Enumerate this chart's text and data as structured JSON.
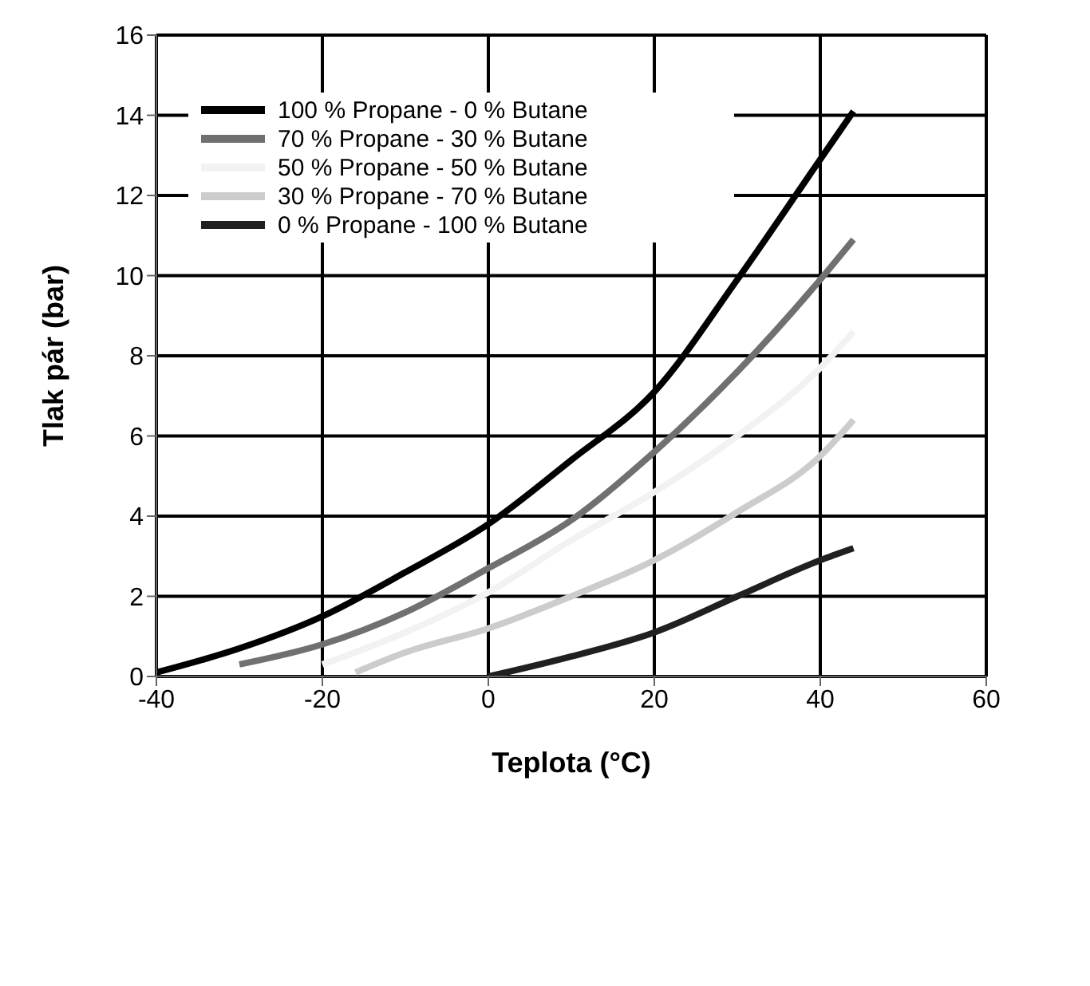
{
  "chart_data": {
    "type": "line",
    "xlabel": "Teplota (°C)",
    "ylabel": "Tlak pár (bar)",
    "xlim": [
      -40,
      60
    ],
    "xticks": [
      -40,
      -20,
      0,
      20,
      40,
      60
    ],
    "ylim": [
      0,
      16
    ],
    "yticks": [
      0,
      2,
      4,
      6,
      8,
      10,
      12,
      14,
      16
    ],
    "grid": true,
    "legend": "top left",
    "marker": "none",
    "line_style": "solid",
    "series": [
      {
        "name": "100 % Propane - 0 % Butane",
        "color": "#000000",
        "x": [
          -40,
          -30,
          -20,
          -10,
          0,
          10,
          20,
          30,
          40,
          44
        ],
        "values": [
          0.1,
          0.7,
          1.5,
          2.6,
          3.8,
          5.4,
          7.1,
          9.9,
          12.9,
          14.1
        ]
      },
      {
        "name": "70 % Propane - 30 % Butane",
        "color": "#707070",
        "x": [
          -30,
          -20,
          -10,
          0,
          10,
          20,
          30,
          40,
          44
        ],
        "values": [
          0.3,
          0.8,
          1.6,
          2.7,
          3.9,
          5.6,
          7.6,
          9.9,
          10.9
        ]
      },
      {
        "name": "50 % Propane - 50 % Butane",
        "color": "#f2f2f2",
        "x": [
          -20,
          -10,
          0,
          10,
          20,
          30,
          40,
          44
        ],
        "values": [
          0.3,
          1.1,
          2.1,
          3.4,
          4.6,
          6.0,
          7.7,
          8.6
        ]
      },
      {
        "name": "30 % Propane - 70 % Butane",
        "color": "#cccccc",
        "x": [
          -16,
          -10,
          0,
          10,
          20,
          30,
          40,
          44
        ],
        "values": [
          0.1,
          0.6,
          1.2,
          2.0,
          2.9,
          4.1,
          5.5,
          6.4
        ]
      },
      {
        "name": "0 % Propane - 100 % Butane",
        "color": "#202020",
        "x": [
          0,
          10,
          20,
          30,
          40,
          44
        ],
        "values": [
          0,
          0.5,
          1.1,
          2.0,
          2.9,
          3.2
        ]
      }
    ]
  }
}
